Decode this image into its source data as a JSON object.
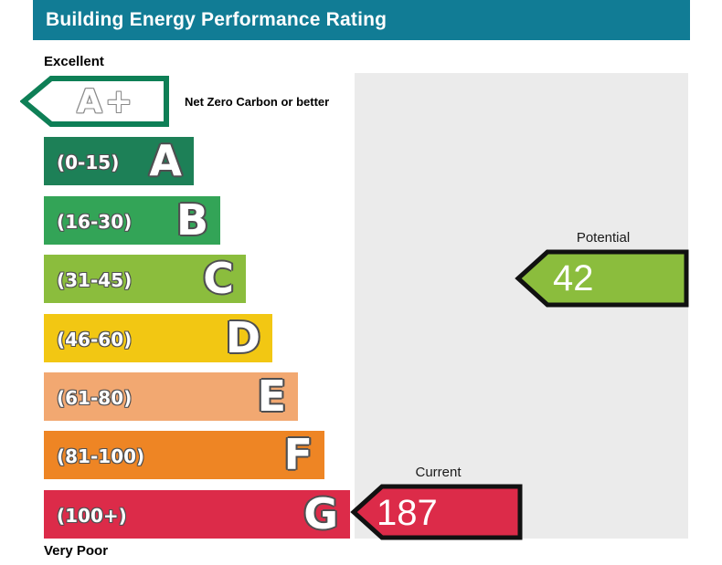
{
  "header": {
    "title": "Building Energy Performance Rating",
    "bg_color": "#117c95"
  },
  "scale": {
    "top_label": "Excellent",
    "bottom_label": "Very Poor",
    "net_zero_band": {
      "grade": "A+",
      "note": "Net Zero Carbon or better",
      "border_color": "#0e7f56"
    },
    "bands": [
      {
        "grade": "A",
        "range": "(0-15)",
        "color": "#1d8057"
      },
      {
        "grade": "B",
        "range": "(16-30)",
        "color": "#33a457"
      },
      {
        "grade": "C",
        "range": "(31-45)",
        "color": "#8bbd3d"
      },
      {
        "grade": "D",
        "range": "(46-60)",
        "color": "#f2c713"
      },
      {
        "grade": "E",
        "range": "(61-80)",
        "color": "#f2a871"
      },
      {
        "grade": "F",
        "range": "(81-100)",
        "color": "#ee8524"
      },
      {
        "grade": "G",
        "range": "(100+)",
        "color": "#dc2b49"
      }
    ]
  },
  "markers": {
    "potential": {
      "label": "Potential",
      "value": "42",
      "color": "#8bbd3d"
    },
    "current": {
      "label": "Current",
      "value": "187",
      "color": "#dc2b49"
    }
  },
  "chart_data": {
    "type": "bar",
    "title": "Building Energy Performance Rating",
    "categories": [
      "A+",
      "A",
      "B",
      "C",
      "D",
      "E",
      "F",
      "G"
    ],
    "band_ranges": [
      "Net Zero Carbon or better",
      "0-15",
      "16-30",
      "31-45",
      "46-60",
      "61-80",
      "81-100",
      "100+"
    ],
    "band_colors": [
      "#ffffff",
      "#1d8057",
      "#33a457",
      "#8bbd3d",
      "#f2c713",
      "#f2a871",
      "#ee8524",
      "#dc2b49"
    ],
    "scale_top_label": "Excellent",
    "scale_bottom_label": "Very Poor",
    "legend_position": "right",
    "markers": [
      {
        "name": "Potential",
        "value": 42,
        "band": "C",
        "color": "#8bbd3d"
      },
      {
        "name": "Current",
        "value": 187,
        "band": "G",
        "color": "#dc2b49"
      }
    ]
  }
}
